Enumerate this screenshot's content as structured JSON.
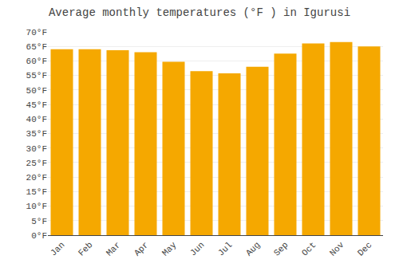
{
  "chart_data": {
    "type": "bar",
    "title": "Average monthly temperatures (°F ) in Igurusi",
    "categories": [
      "Jan",
      "Feb",
      "Mar",
      "Apr",
      "May",
      "Jun",
      "Jul",
      "Aug",
      "Sep",
      "Oct",
      "Nov",
      "Dec"
    ],
    "values": [
      64.0,
      64.0,
      63.7,
      63.0,
      59.7,
      56.5,
      55.7,
      58.0,
      62.5,
      66.0,
      66.5,
      65.0
    ],
    "color": "#F5A800",
    "ylim": [
      0,
      70
    ],
    "yticks": [
      {
        "value": 0,
        "label": "0°F"
      },
      {
        "value": 5,
        "label": "5°F"
      },
      {
        "value": 10,
        "label": "10°F"
      },
      {
        "value": 15,
        "label": "15°F"
      },
      {
        "value": 20,
        "label": "20°F"
      },
      {
        "value": 25,
        "label": "25°F"
      },
      {
        "value": 30,
        "label": "30°F"
      },
      {
        "value": 35,
        "label": "35°F"
      },
      {
        "value": 40,
        "label": "40°F"
      },
      {
        "value": 45,
        "label": "45°F"
      },
      {
        "value": 50,
        "label": "50°F"
      },
      {
        "value": 55,
        "label": "55°F"
      },
      {
        "value": 60,
        "label": "60°F"
      },
      {
        "value": 65,
        "label": "65°F"
      },
      {
        "value": 70,
        "label": "70°F"
      }
    ],
    "grid": true
  }
}
